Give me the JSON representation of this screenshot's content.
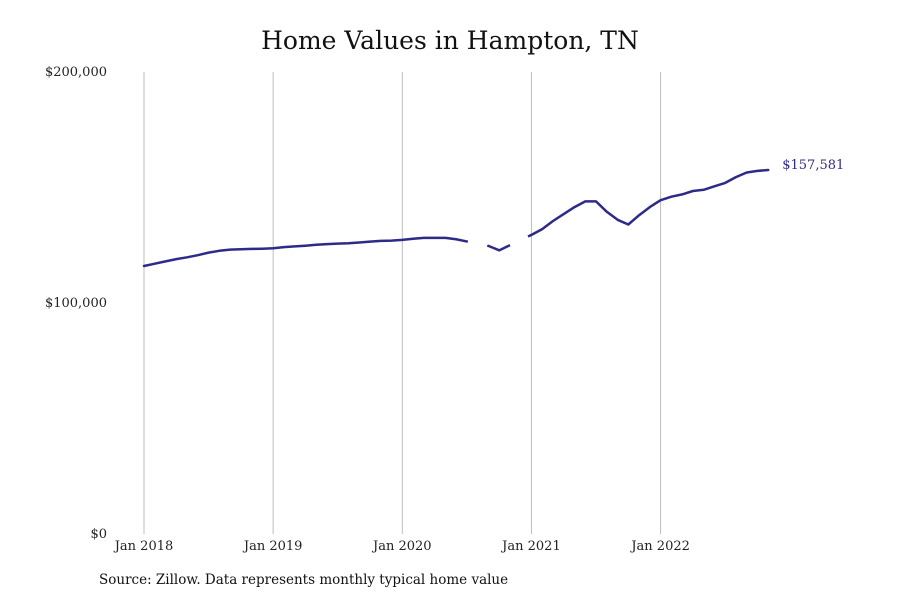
{
  "chart_data": {
    "type": "line",
    "title": "Home Values in Hampton, TN",
    "source": "Source: Zillow. Data represents monthly typical home value",
    "x_tick_labels": [
      "Jan 2018",
      "Jan 2019",
      "Jan 2020",
      "Jan 2021",
      "Jan 2022"
    ],
    "y_tick_labels": [
      "$0",
      "$100,000",
      "$200,000"
    ],
    "ylim": [
      0,
      200000
    ],
    "xlim": [
      "2018-01",
      "2022-12"
    ],
    "grid": "vertical",
    "line_color": "#2e2a8a",
    "end_label": "$157,581",
    "series": [
      {
        "x": [
          "2018-01",
          "2018-02",
          "2018-03",
          "2018-04",
          "2018-05",
          "2018-06",
          "2018-07",
          "2018-08",
          "2018-09",
          "2018-10",
          "2018-11",
          "2018-12",
          "2019-01",
          "2019-02",
          "2019-03",
          "2019-04",
          "2019-05",
          "2019-06",
          "2019-07",
          "2019-08",
          "2019-09",
          "2019-10",
          "2019-11",
          "2019-12",
          "2020-01",
          "2020-02",
          "2020-03",
          "2020-04",
          "2020-05",
          "2020-06",
          "2020-07",
          "2020-08",
          "2020-09",
          "2020-10",
          "2020-11",
          "2020-12",
          "2021-01",
          "2021-02",
          "2021-03",
          "2021-04",
          "2021-05",
          "2021-06",
          "2021-07",
          "2021-08",
          "2021-09",
          "2021-10",
          "2021-11",
          "2021-12",
          "2022-01",
          "2022-02",
          "2022-03",
          "2022-04",
          "2022-05",
          "2022-06",
          "2022-07",
          "2022-08",
          "2022-09",
          "2022-10",
          "2022-11",
          "2022-12"
        ],
        "values": [
          116000,
          117000,
          118000,
          119000,
          119800,
          120700,
          121800,
          122600,
          123100,
          123300,
          123400,
          123500,
          123700,
          124200,
          124500,
          124800,
          125200,
          125500,
          125700,
          125900,
          126200,
          126600,
          126900,
          127000,
          127300,
          127800,
          128200,
          128200,
          128200,
          127600,
          null,
          null,
          124700,
          122800,
          null,
          null,
          129500,
          132000,
          135500,
          138500,
          141500,
          144000,
          144000,
          139500,
          136000,
          134000,
          138000,
          141500,
          144500,
          146000,
          147000,
          148500,
          149000,
          150500,
          152000,
          154500,
          156500,
          157200,
          157581,
          null
        ],
        "dashed_gap": {
          "from": "2020-06",
          "to": "2020-12"
        }
      }
    ]
  }
}
